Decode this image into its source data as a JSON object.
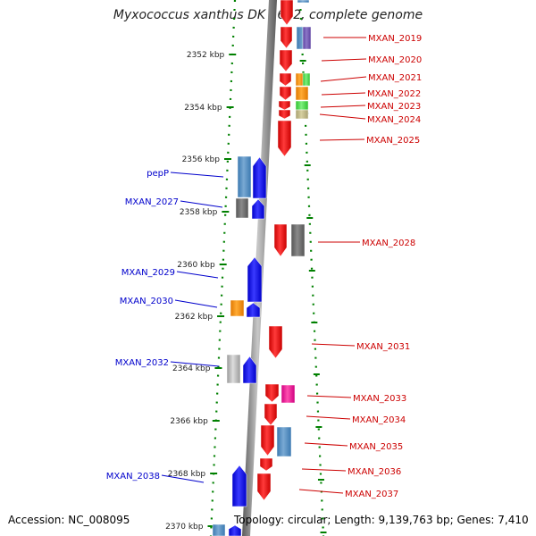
{
  "title": "Myxococcus xanthus DK 1622, complete genome",
  "accession": "Accession: NC_008095",
  "summary": "Topology: circular; Length: 9,139,763 bp; Genes: 7,410",
  "colors": {
    "forward": "#ff0000",
    "reverse": "#0000ff",
    "backbone": "#888888",
    "tick_ring": "#008000",
    "label_forward": "#cc0000",
    "label_reverse": "#0000cc"
  },
  "scale_labels": [
    "2352 kbp",
    "2354 kbp",
    "2356 kbp",
    "2358 kbp",
    "2360 kbp",
    "2362 kbp",
    "2364 kbp",
    "2366 kbp",
    "2368 kbp",
    "2370 kbp"
  ],
  "gene_labels_right": [
    "MXAN_2019",
    "MXAN_2020",
    "MXAN_2021",
    "MXAN_2022",
    "MXAN_2023",
    "MXAN_2024",
    "MXAN_2025",
    "MXAN_2028",
    "MXAN_2031",
    "MXAN_2033",
    "MXAN_2034",
    "MXAN_2035",
    "MXAN_2036",
    "MXAN_2037"
  ],
  "gene_labels_left": [
    "pepP",
    "MXAN_2027",
    "MXAN_2029",
    "MXAN_2030",
    "MXAN_2032",
    "MXAN_2038"
  ]
}
